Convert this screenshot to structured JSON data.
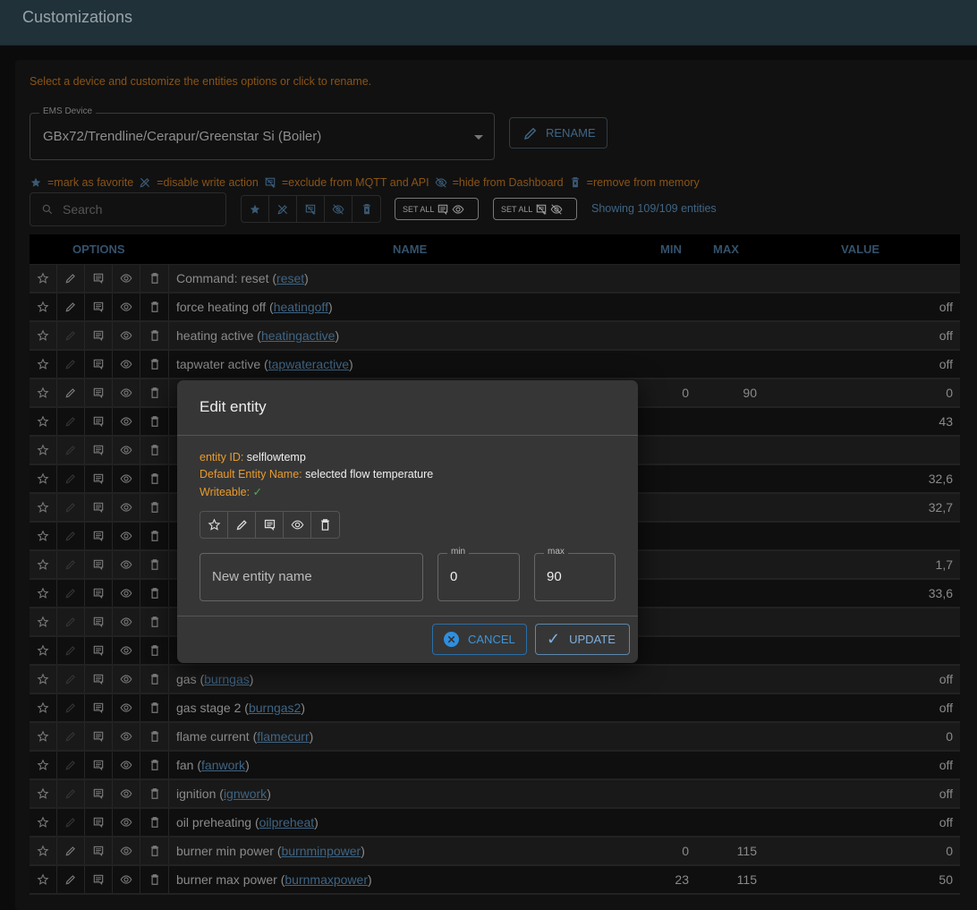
{
  "header": {
    "title": "Customizations"
  },
  "hint": "Select a device and customize the entities options or click to rename.",
  "device_select": {
    "label": "EMS Device",
    "value": "GBx72/Trendline/Cerapur/Greenstar Si (Boiler)"
  },
  "rename_label": "RENAME",
  "legend": {
    "favorite": "=mark as favorite",
    "readonly": "=disable write action",
    "api_mqtt_exclude": "=exclude from MQTT and API",
    "web_exclude": "=hide from Dashboard",
    "deleted": "=remove from memory"
  },
  "search": {
    "placeholder": "Search"
  },
  "set_all_label": "SET ALL",
  "showing": "Showing 109/109 entities",
  "table": {
    "headers": {
      "options": "OPTIONS",
      "name": "NAME",
      "min": "MIN",
      "max": "MAX",
      "value": "VALUE"
    },
    "rows": [
      {
        "name": "Command: reset",
        "id": "reset",
        "writable": true,
        "min": "",
        "max": "",
        "value": ""
      },
      {
        "name": "force heating off",
        "id": "heatingoff",
        "writable": true,
        "min": "",
        "max": "",
        "value": "off"
      },
      {
        "name": "heating active",
        "id": "heatingactive",
        "writable": false,
        "min": "",
        "max": "",
        "value": "off"
      },
      {
        "name": "tapwater active",
        "id": "tapwateractive",
        "writable": false,
        "min": "",
        "max": "",
        "value": "off"
      },
      {
        "name": "",
        "id": "",
        "writable": true,
        "min": "0",
        "max": "90",
        "value": "0"
      },
      {
        "name": "",
        "id": "",
        "writable": false,
        "min": "",
        "max": "",
        "value": "43"
      },
      {
        "name": "",
        "id": "",
        "writable": false,
        "min": "",
        "max": "",
        "value": ""
      },
      {
        "name": "",
        "id": "",
        "writable": false,
        "min": "",
        "max": "",
        "value": "32,6"
      },
      {
        "name": "",
        "id": "",
        "writable": false,
        "min": "",
        "max": "",
        "value": "32,7"
      },
      {
        "name": "",
        "id": "",
        "writable": false,
        "min": "",
        "max": "",
        "value": ""
      },
      {
        "name": "",
        "id": "",
        "writable": false,
        "min": "",
        "max": "",
        "value": "1,7"
      },
      {
        "name": "",
        "id": "",
        "writable": false,
        "min": "",
        "max": "",
        "value": "33,6"
      },
      {
        "name": "",
        "id": "",
        "writable": false,
        "min": "",
        "max": "",
        "value": ""
      },
      {
        "name": "",
        "id": "",
        "writable": false,
        "min": "",
        "max": "",
        "value": ""
      },
      {
        "name": "gas",
        "id": "burngas",
        "writable": false,
        "min": "",
        "max": "",
        "value": "off"
      },
      {
        "name": "gas stage 2",
        "id": "burngas2",
        "writable": false,
        "min": "",
        "max": "",
        "value": "off"
      },
      {
        "name": "flame current",
        "id": "flamecurr",
        "writable": false,
        "min": "",
        "max": "",
        "value": "0"
      },
      {
        "name": "fan",
        "id": "fanwork",
        "writable": false,
        "min": "",
        "max": "",
        "value": "off"
      },
      {
        "name": "ignition",
        "id": "ignwork",
        "writable": false,
        "min": "",
        "max": "",
        "value": "off"
      },
      {
        "name": "oil preheating",
        "id": "oilpreheat",
        "writable": false,
        "min": "",
        "max": "",
        "value": "off"
      },
      {
        "name": "burner min power",
        "id": "burnminpower",
        "writable": true,
        "min": "0",
        "max": "115",
        "value": "0"
      },
      {
        "name": "burner max power",
        "id": "burnmaxpower",
        "writable": true,
        "min": "23",
        "max": "115",
        "value": "50"
      }
    ]
  },
  "dialog": {
    "title": "Edit entity",
    "entity_id_label": "entity ID: ",
    "entity_id": "selflowtemp",
    "default_name_label": "Default Entity Name: ",
    "default_name": "selected flow temperature",
    "writeable_label": "Writeable: ",
    "writeable_icon": "check-icon",
    "name_placeholder": "New entity name",
    "min_label": "min",
    "min_value": "0",
    "max_label": "max",
    "max_value": "90",
    "cancel_label": "CANCEL",
    "update_label": "UPDATE"
  },
  "colors": {
    "accent": "#3d95d8",
    "hint": "#e89b2c",
    "success": "#4caf50"
  }
}
